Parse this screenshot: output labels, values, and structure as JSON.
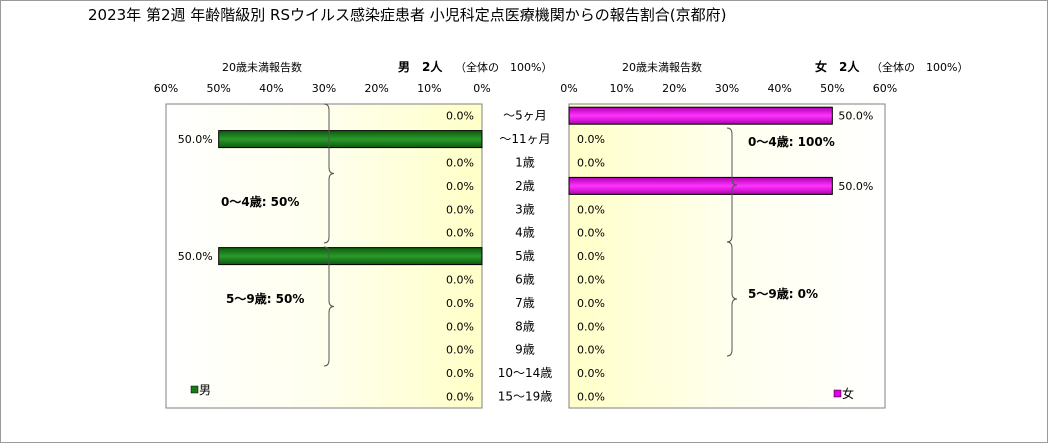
{
  "chart_data": {
    "title": "2023年 第2週 年齢階級別 RSウイルス感染症患者 小児科定点医療機関からの報告割合(京都府)",
    "type": "bar",
    "categories": [
      "～5ヶ月",
      "～11ヶ月",
      "1歳",
      "2歳",
      "3歳",
      "4歳",
      "5歳",
      "6歳",
      "7歳",
      "8歳",
      "9歳",
      "10～14歳",
      "15～19歳"
    ],
    "ticks": [
      "60%",
      "50%",
      "40%",
      "30%",
      "20%",
      "10%",
      "0%"
    ],
    "ticks_right": [
      "0%",
      "10%",
      "20%",
      "30%",
      "40%",
      "50%",
      "60%"
    ],
    "xlim": [
      0,
      60
    ],
    "panels": [
      {
        "side": "left",
        "header_label": "20歳未満報告数",
        "header_total": "男　2人",
        "header_note": "（全体の　100%）",
        "series_name": "男",
        "color": "#1a7a1a",
        "values": [
          0.0,
          50.0,
          0.0,
          0.0,
          0.0,
          0.0,
          50.0,
          0.0,
          0.0,
          0.0,
          0.0,
          0.0,
          0.0
        ],
        "value_labels": [
          "0.0%",
          "50.0%",
          "0.0%",
          "0.0%",
          "0.0%",
          "0.0%",
          "50.0%",
          "0.0%",
          "0.0%",
          "0.0%",
          "0.0%",
          "0.0%",
          "0.0%"
        ],
        "brackets": [
          {
            "label": "0～4歳: 50%",
            "from": 0,
            "to": 5
          },
          {
            "label": "5～9歳: 50%",
            "from": 6,
            "to": 10
          }
        ]
      },
      {
        "side": "right",
        "header_label": "20歳未満報告数",
        "header_total": "女　2人",
        "header_note": "（全体の　100%）",
        "series_name": "女",
        "color": "#e000e0",
        "values": [
          50.0,
          0.0,
          0.0,
          50.0,
          0.0,
          0.0,
          0.0,
          0.0,
          0.0,
          0.0,
          0.0,
          0.0,
          0.0
        ],
        "value_labels": [
          "50.0%",
          "0.0%",
          "0.0%",
          "50.0%",
          "0.0%",
          "0.0%",
          "0.0%",
          "0.0%",
          "0.0%",
          "0.0%",
          "0.0%",
          "0.0%",
          "0.0%"
        ],
        "brackets": [
          {
            "label": "0～4歳: 100%",
            "from": 0,
            "to": 5
          },
          {
            "label": "5～9歳: 0%",
            "from": 6,
            "to": 10
          }
        ]
      }
    ]
  }
}
